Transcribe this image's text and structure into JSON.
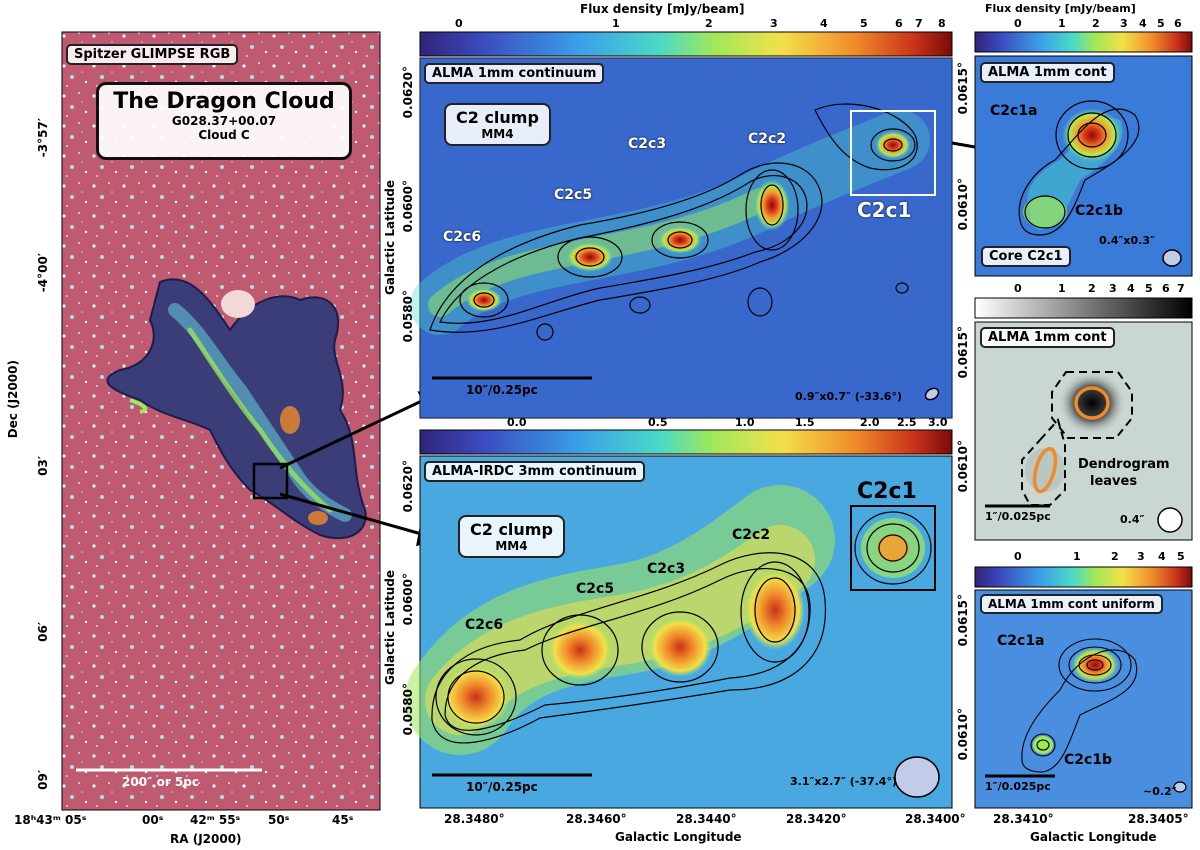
{
  "left_panel": {
    "tag": "Spitzer GLIMPSE RGB",
    "title": "The Dragon Cloud",
    "subtitle1": "G028.37+00.07",
    "subtitle2": "Cloud C",
    "scalebar": "200″ or 5pc",
    "ylabel": "Dec (J2000)",
    "xlabel": "RA (J2000)",
    "yticks": [
      "-3°57′",
      "-4°00′",
      "03′",
      "06′",
      "09′"
    ],
    "xticks": [
      "18ʰ43ᵐ 05ˢ",
      "00ˢ",
      "42ᵐ 55ˢ",
      "50ˢ",
      "45ˢ"
    ]
  },
  "top_center": {
    "cbar_title": "Flux density [mJy/beam]",
    "cbar_ticks": [
      "0",
      "1",
      "2",
      "3",
      "4",
      "5",
      "6",
      "7",
      "8"
    ],
    "tag": "ALMA 1mm continuum",
    "clump_title": "C2 clump",
    "clump_sub": "MM4",
    "cores": [
      "C2c1",
      "C2c2",
      "C2c3",
      "C2c5",
      "C2c6"
    ],
    "scalebar": "10″/0.25pc",
    "beam": "0.9″x0.7″ (-33.6°)",
    "ylabel": "Galactic Latitude",
    "yticks": [
      "0.0620°",
      "0.0600°",
      "0.0580°"
    ]
  },
  "bottom_center": {
    "cbar_ticks": [
      "0.0",
      "0.5",
      "1.0",
      "1.5",
      "2.0",
      "2.5",
      "3.0"
    ],
    "tag": "ALMA-IRDC 3mm continuum",
    "clump_title": "C2 clump",
    "clump_sub": "MM4",
    "cores": [
      "C2c1",
      "C2c2",
      "C2c3",
      "C2c5",
      "C2c6"
    ],
    "scalebar": "10″/0.25pc",
    "beam": "3.1″x2.7″ (-37.4°)",
    "ylabel": "Galactic Latitude",
    "yticks": [
      "0.0620°",
      "0.0600°",
      "0.0580°"
    ],
    "xlabel": "Galactic Longitude",
    "xticks": [
      "28.3480°",
      "28.3460°",
      "28.3440°",
      "28.3420°",
      "28.3400°"
    ]
  },
  "right_top": {
    "cbar_title": "Flux density [mJy/beam]",
    "cbar_ticks": [
      "0",
      "1",
      "2",
      "3",
      "4",
      "5",
      "6"
    ],
    "tag": "ALMA 1mm cont",
    "cores": [
      "C2c1a",
      "C2c1b"
    ],
    "corebox": "Core C2c1",
    "beam": "0.4″x0.3″",
    "yticks": [
      "0.0615°",
      "0.0610°"
    ]
  },
  "right_mid": {
    "cbar_ticks": [
      "0",
      "1",
      "2",
      "3",
      "4",
      "5",
      "6",
      "7"
    ],
    "tag": "ALMA 1mm cont",
    "label1": "Dendrogram",
    "label2": "leaves",
    "scalebar": "1″/0.025pc",
    "beam": "0.4″",
    "yticks": [
      "0.0615°",
      "0.0610°"
    ]
  },
  "right_bottom": {
    "cbar_ticks": [
      "0",
      "1",
      "2",
      "3",
      "4",
      "5"
    ],
    "tag": "ALMA 1mm cont uniform",
    "cores": [
      "C2c1a",
      "C2c1b"
    ],
    "scalebar": "1″/0.025pc",
    "beam": "~0.2″",
    "yticks": [
      "0.0615°",
      "0.0610°"
    ],
    "xlabel": "Galactic Longitude",
    "xticks": [
      "28.3410°",
      "28.3405°"
    ]
  },
  "colors": {
    "jet_low": "#2b2f8f",
    "jet_high": "#8b0000",
    "ir_red": "#c35a6e",
    "contour": "#000000"
  }
}
